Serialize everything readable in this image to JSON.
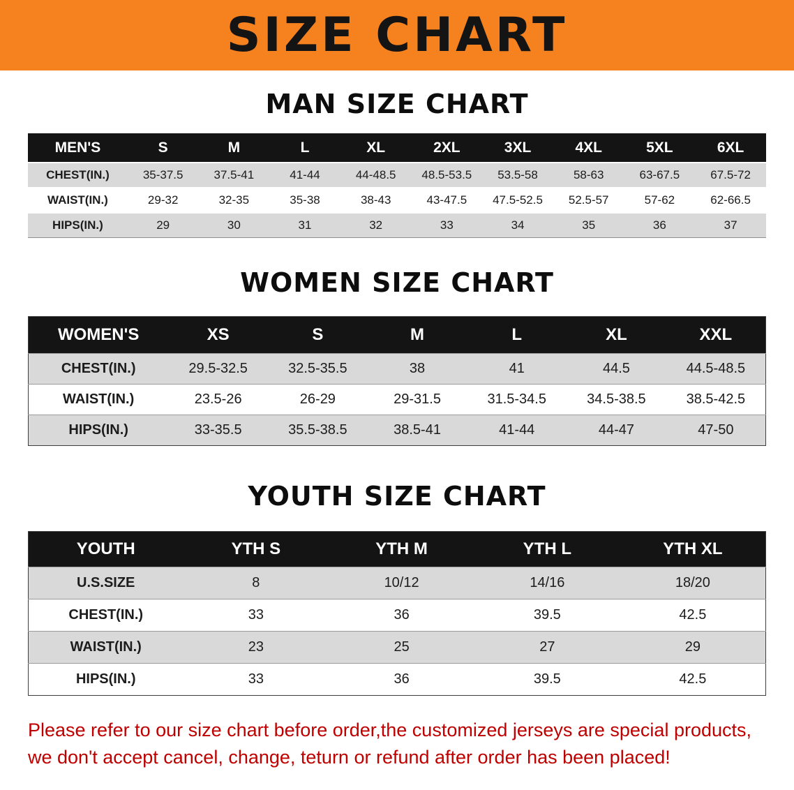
{
  "banner": {
    "title": "SIZE CHART"
  },
  "sections": [
    {
      "id": "men",
      "heading": "MAN SIZE CHART",
      "table": {
        "header": [
          "MEN'S",
          "S",
          "M",
          "L",
          "XL",
          "2XL",
          "3XL",
          "4XL",
          "5XL",
          "6XL"
        ],
        "rows": [
          [
            "CHEST(IN.)",
            "35-37.5",
            "37.5-41",
            "41-44",
            "44-48.5",
            "48.5-53.5",
            "53.5-58",
            "58-63",
            "63-67.5",
            "67.5-72"
          ],
          [
            "WAIST(IN.)",
            "29-32",
            "32-35",
            "35-38",
            "38-43",
            "43-47.5",
            "47.5-52.5",
            "52.5-57",
            "57-62",
            "62-66.5"
          ],
          [
            "HIPS(IN.)",
            "29",
            "30",
            "31",
            "32",
            "33",
            "34",
            "35",
            "36",
            "37"
          ]
        ]
      }
    },
    {
      "id": "women",
      "heading": "WOMEN SIZE CHART",
      "table": {
        "header": [
          "WOMEN'S",
          "XS",
          "S",
          "M",
          "L",
          "XL",
          "XXL"
        ],
        "rows": [
          [
            "CHEST(IN.)",
            "29.5-32.5",
            "32.5-35.5",
            "38",
            "41",
            "44.5",
            "44.5-48.5"
          ],
          [
            "WAIST(IN.)",
            "23.5-26",
            "26-29",
            "29-31.5",
            "31.5-34.5",
            "34.5-38.5",
            "38.5-42.5"
          ],
          [
            "HIPS(IN.)",
            "33-35.5",
            "35.5-38.5",
            "38.5-41",
            "41-44",
            "44-47",
            "47-50"
          ]
        ]
      }
    },
    {
      "id": "youth",
      "heading": "YOUTH SIZE CHART",
      "table": {
        "header": [
          "YOUTH",
          "YTH S",
          "YTH M",
          "YTH L",
          "YTH XL"
        ],
        "rows": [
          [
            "U.S.SIZE",
            "8",
            "10/12",
            "14/16",
            "18/20"
          ],
          [
            "CHEST(IN.)",
            "33",
            "36",
            "39.5",
            "42.5"
          ],
          [
            "WAIST(IN.)",
            "23",
            "25",
            "27",
            "29"
          ],
          [
            "HIPS(IN.)",
            "33",
            "36",
            "39.5",
            "42.5"
          ]
        ]
      }
    }
  ],
  "disclaimer": {
    "line1": "Please refer to our size chart before order,the customized jerseys are special products,",
    "line2": "we don't accept cancel, change, teturn or refund after order has been placed!"
  },
  "colors": {
    "banner_bg": "#f6821f",
    "banner_text": "#141414",
    "table_header_bg": "#141414",
    "table_header_text": "#ffffff",
    "row_stripe": "#d9d9d9",
    "disclaimer_text": "#bf0000"
  }
}
